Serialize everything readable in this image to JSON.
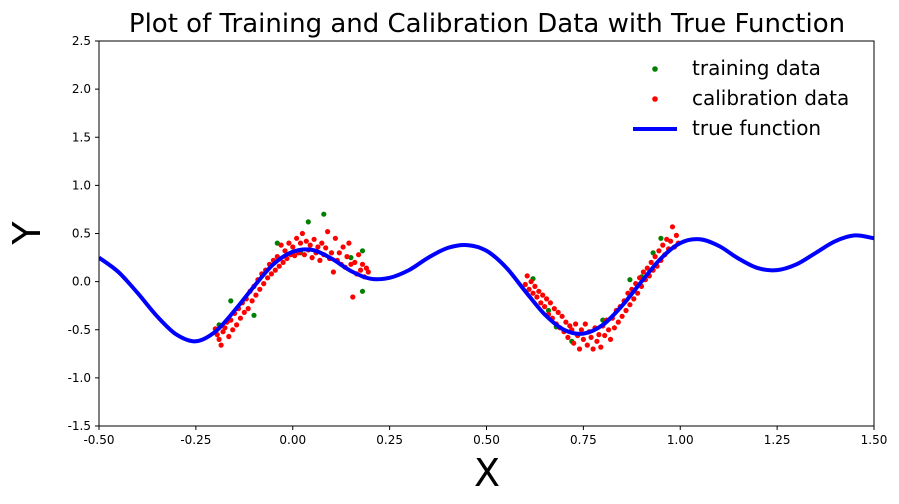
{
  "chart_data": {
    "type": "scatter",
    "title": "Plot of Training and Calibration Data with True Function",
    "xlabel": "X",
    "ylabel": "Y",
    "xlim": [
      -0.5,
      1.5
    ],
    "ylim": [
      -1.5,
      2.5
    ],
    "xticks": [
      -0.5,
      -0.25,
      0.0,
      0.25,
      0.5,
      0.75,
      1.0,
      1.25,
      1.5
    ],
    "xtick_labels": [
      "-0.50",
      "-0.25",
      "0.00",
      "0.25",
      "0.50",
      "0.75",
      "1.00",
      "1.25",
      "1.50"
    ],
    "yticks": [
      -1.5,
      -1.0,
      -0.5,
      0.0,
      0.5,
      1.0,
      1.5,
      2.0,
      2.5
    ],
    "ytick_labels": [
      "-1.5",
      "-1.0",
      "-0.5",
      "0.0",
      "0.5",
      "1.0",
      "1.5",
      "2.0",
      "2.5"
    ],
    "grid": false,
    "legend": "top-right",
    "series": [
      {
        "name": "training data",
        "kind": "scatter",
        "color": "#008000",
        "points": [
          [
            0.08,
            0.7
          ],
          [
            0.04,
            0.62
          ],
          [
            -0.04,
            0.4
          ],
          [
            0.18,
            0.32
          ],
          [
            0.18,
            -0.1
          ],
          [
            -0.16,
            -0.2
          ],
          [
            -0.1,
            -0.35
          ],
          [
            0.62,
            0.03
          ],
          [
            0.68,
            -0.47
          ],
          [
            0.72,
            -0.62
          ],
          [
            0.87,
            0.02
          ],
          [
            0.95,
            0.45
          ],
          [
            0.9,
            0.05
          ],
          [
            0.8,
            -0.4
          ],
          [
            0.15,
            0.25
          ],
          [
            -0.19,
            -0.45
          ],
          [
            0.66,
            -0.3
          ],
          [
            0.93,
            0.3
          ],
          [
            0.02,
            0.3
          ],
          [
            0.1,
            0.3
          ]
        ]
      },
      {
        "name": "calibration data",
        "kind": "scatter",
        "color": "#ff0000",
        "generated_range": [
          [
            -0.2,
            0.2
          ],
          [
            0.6,
            1.0
          ]
        ],
        "points": [
          [
            -0.2,
            -0.49
          ],
          [
            -0.195,
            -0.55
          ],
          [
            -0.19,
            -0.6
          ],
          [
            -0.185,
            -0.66
          ],
          [
            -0.18,
            -0.52
          ],
          [
            -0.175,
            -0.48
          ],
          [
            -0.17,
            -0.42
          ],
          [
            -0.165,
            -0.57
          ],
          [
            -0.16,
            -0.4
          ],
          [
            -0.155,
            -0.5
          ],
          [
            -0.15,
            -0.33
          ],
          [
            -0.145,
            -0.45
          ],
          [
            -0.14,
            -0.28
          ],
          [
            -0.135,
            -0.38
          ],
          [
            -0.13,
            -0.22
          ],
          [
            -0.125,
            -0.32
          ],
          [
            -0.12,
            -0.18
          ],
          [
            -0.115,
            -0.28
          ],
          [
            -0.11,
            -0.1
          ],
          [
            -0.105,
            -0.2
          ],
          [
            -0.1,
            -0.05
          ],
          [
            -0.095,
            -0.14
          ],
          [
            -0.09,
            0.02
          ],
          [
            -0.085,
            -0.08
          ],
          [
            -0.08,
            0.08
          ],
          [
            -0.075,
            -0.02
          ],
          [
            -0.07,
            0.12
          ],
          [
            -0.065,
            0.04
          ],
          [
            -0.06,
            0.18
          ],
          [
            -0.055,
            0.08
          ],
          [
            -0.05,
            0.22
          ],
          [
            -0.045,
            0.12
          ],
          [
            -0.04,
            0.26
          ],
          [
            -0.035,
            0.16
          ],
          [
            -0.03,
            0.38
          ],
          [
            -0.025,
            0.2
          ],
          [
            -0.02,
            0.32
          ],
          [
            -0.015,
            0.24
          ],
          [
            -0.01,
            0.4
          ],
          [
            -0.005,
            0.28
          ],
          [
            0.0,
            0.36
          ],
          [
            0.005,
            0.27
          ],
          [
            0.01,
            0.45
          ],
          [
            0.015,
            0.3
          ],
          [
            0.02,
            0.4
          ],
          [
            0.025,
            0.5
          ],
          [
            0.03,
            0.28
          ],
          [
            0.035,
            0.42
          ],
          [
            0.04,
            0.33
          ],
          [
            0.045,
            0.38
          ],
          [
            0.05,
            0.25
          ],
          [
            0.055,
            0.44
          ],
          [
            0.06,
            0.3
          ],
          [
            0.065,
            0.36
          ],
          [
            0.07,
            0.22
          ],
          [
            0.075,
            0.4
          ],
          [
            0.08,
            0.28
          ],
          [
            0.085,
            0.35
          ],
          [
            0.09,
            0.52
          ],
          [
            0.095,
            0.24
          ],
          [
            0.1,
            0.3
          ],
          [
            0.105,
            0.1
          ],
          [
            0.11,
            0.45
          ],
          [
            0.115,
            0.22
          ],
          [
            0.12,
            0.3
          ],
          [
            0.125,
            0.18
          ],
          [
            0.13,
            0.36
          ],
          [
            0.135,
            0.15
          ],
          [
            0.14,
            0.26
          ],
          [
            0.145,
            0.4
          ],
          [
            0.15,
            0.18
          ],
          [
            0.155,
            -0.16
          ],
          [
            0.16,
            0.2
          ],
          [
            0.165,
            0.08
          ],
          [
            0.17,
            0.28
          ],
          [
            0.175,
            0.12
          ],
          [
            0.18,
            0.18
          ],
          [
            0.185,
            0.05
          ],
          [
            0.19,
            0.14
          ],
          [
            0.195,
            0.1
          ],
          [
            0.6,
            -0.03
          ],
          [
            0.605,
            0.06
          ],
          [
            0.61,
            -0.08
          ],
          [
            0.615,
            0.0
          ],
          [
            0.62,
            -0.12
          ],
          [
            0.625,
            -0.05
          ],
          [
            0.63,
            -0.16
          ],
          [
            0.635,
            -0.1
          ],
          [
            0.64,
            -0.22
          ],
          [
            0.645,
            -0.14
          ],
          [
            0.65,
            -0.26
          ],
          [
            0.655,
            -0.18
          ],
          [
            0.66,
            -0.34
          ],
          [
            0.665,
            -0.22
          ],
          [
            0.67,
            -0.38
          ],
          [
            0.675,
            -0.28
          ],
          [
            0.68,
            -0.44
          ],
          [
            0.685,
            -0.32
          ],
          [
            0.69,
            -0.48
          ],
          [
            0.695,
            -0.36
          ],
          [
            0.7,
            -0.52
          ],
          [
            0.705,
            -0.42
          ],
          [
            0.71,
            -0.58
          ],
          [
            0.715,
            -0.46
          ],
          [
            0.72,
            -0.5
          ],
          [
            0.725,
            -0.64
          ],
          [
            0.73,
            -0.44
          ],
          [
            0.735,
            -0.56
          ],
          [
            0.74,
            -0.7
          ],
          [
            0.745,
            -0.5
          ],
          [
            0.75,
            -0.6
          ],
          [
            0.755,
            -0.44
          ],
          [
            0.76,
            -0.66
          ],
          [
            0.765,
            -0.52
          ],
          [
            0.77,
            -0.58
          ],
          [
            0.775,
            -0.7
          ],
          [
            0.78,
            -0.48
          ],
          [
            0.785,
            -0.62
          ],
          [
            0.79,
            -0.55
          ],
          [
            0.795,
            -0.68
          ],
          [
            0.8,
            -0.46
          ],
          [
            0.805,
            -0.56
          ],
          [
            0.81,
            -0.4
          ],
          [
            0.815,
            -0.5
          ],
          [
            0.82,
            -0.6
          ],
          [
            0.825,
            -0.38
          ],
          [
            0.83,
            -0.48
          ],
          [
            0.835,
            -0.3
          ],
          [
            0.84,
            -0.42
          ],
          [
            0.845,
            -0.26
          ],
          [
            0.85,
            -0.36
          ],
          [
            0.855,
            -0.2
          ],
          [
            0.86,
            -0.3
          ],
          [
            0.865,
            -0.12
          ],
          [
            0.87,
            -0.24
          ],
          [
            0.875,
            -0.08
          ],
          [
            0.88,
            -0.18
          ],
          [
            0.885,
            -0.02
          ],
          [
            0.89,
            -0.12
          ],
          [
            0.895,
            0.04
          ],
          [
            0.9,
            -0.05
          ],
          [
            0.905,
            0.1
          ],
          [
            0.91,
            0.02
          ],
          [
            0.915,
            0.14
          ],
          [
            0.92,
            0.06
          ],
          [
            0.925,
            0.2
          ],
          [
            0.93,
            0.12
          ],
          [
            0.935,
            0.26
          ],
          [
            0.94,
            0.16
          ],
          [
            0.945,
            0.32
          ],
          [
            0.95,
            0.22
          ],
          [
            0.955,
            0.38
          ],
          [
            0.96,
            0.28
          ],
          [
            0.965,
            0.44
          ],
          [
            0.97,
            0.34
          ],
          [
            0.975,
            0.42
          ],
          [
            0.98,
            0.57
          ],
          [
            0.985,
            0.36
          ],
          [
            0.99,
            0.48
          ],
          [
            0.995,
            0.4
          ]
        ]
      },
      {
        "name": "true function",
        "kind": "line",
        "color": "#0000ff",
        "function": "0.3*sin(2*pi*x*1.0)+0.1*x+... approx",
        "x": [
          -0.5,
          -0.45,
          -0.4,
          -0.35,
          -0.3,
          -0.25,
          -0.2,
          -0.15,
          -0.1,
          -0.05,
          0.0,
          0.05,
          0.1,
          0.15,
          0.2,
          0.25,
          0.3,
          0.35,
          0.4,
          0.45,
          0.5,
          0.55,
          0.6,
          0.65,
          0.7,
          0.75,
          0.8,
          0.85,
          0.9,
          0.95,
          1.0,
          1.05,
          1.1,
          1.15,
          1.2,
          1.25,
          1.3,
          1.35,
          1.4,
          1.45,
          1.5
        ],
        "y": [
          0.25,
          0.1,
          -0.12,
          -0.36,
          -0.55,
          -0.62,
          -0.52,
          -0.3,
          -0.05,
          0.18,
          0.31,
          0.33,
          0.24,
          0.11,
          0.03,
          0.04,
          0.12,
          0.25,
          0.35,
          0.38,
          0.32,
          0.15,
          -0.1,
          -0.34,
          -0.5,
          -0.54,
          -0.45,
          -0.25,
          0.0,
          0.24,
          0.4,
          0.44,
          0.37,
          0.24,
          0.14,
          0.12,
          0.18,
          0.3,
          0.42,
          0.48,
          0.45
        ]
      }
    ]
  }
}
